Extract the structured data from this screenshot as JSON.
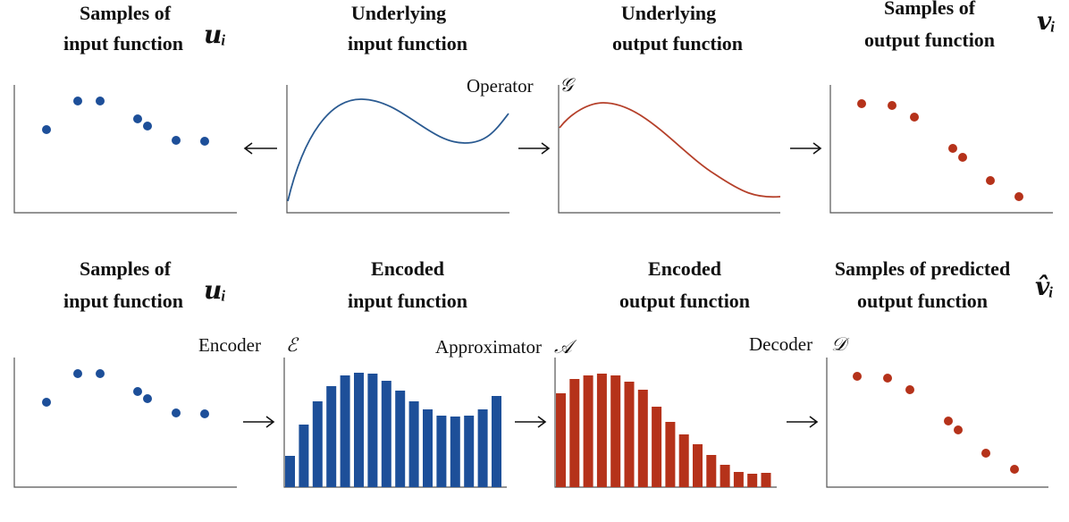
{
  "panels": [
    {
      "title": [
        "Samples of",
        "input function"
      ],
      "symbol": "𝒖ᵢ"
    },
    {
      "title": [
        "Underlying",
        "input function"
      ]
    },
    {
      "title": [
        "Underlying",
        "output function"
      ]
    },
    {
      "title": [
        "Samples of",
        "output function"
      ],
      "symbol": "𝒗ᵢ"
    },
    {
      "title": [
        "Samples of",
        "input function"
      ],
      "symbol": "𝒖ᵢ"
    },
    {
      "title": [
        "Encoded",
        "input function"
      ]
    },
    {
      "title": [
        "Encoded",
        "output function"
      ]
    },
    {
      "title": [
        "Samples of predicted",
        "output function"
      ],
      "symbol": "𝒗̂ᵢ"
    }
  ],
  "operators": [
    {
      "label": "Operator",
      "symbol": "𝒢"
    },
    {
      "label": "Encoder",
      "symbol": "ℰ"
    },
    {
      "label": "Approximator",
      "symbol": "𝒜"
    },
    {
      "label": "Decoder",
      "symbol": "𝒟"
    }
  ]
}
